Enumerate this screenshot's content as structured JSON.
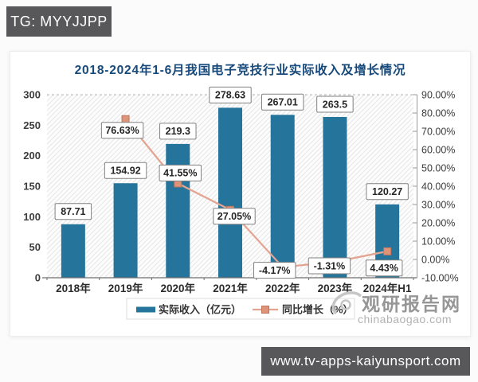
{
  "page": {
    "top_badge": "TG: MYYJJPP",
    "bottom_badge": "www.tv-apps-kaiyunsport.com"
  },
  "watermark": {
    "name": "观研报告网",
    "domain": "chinabaogao.com"
  },
  "chart_data": {
    "type": "bar+line combo",
    "title": "2018-2024年1-6月我国电子竞技行业实际收入及增长情况",
    "categories": [
      "2018年",
      "2019年",
      "2020年",
      "2021年",
      "2022年",
      "2023年",
      "2024年H1"
    ],
    "series": [
      {
        "name": "实际收入（亿元）",
        "type": "bar",
        "axis": "left",
        "color": "#25749b",
        "values": [
          87.71,
          154.92,
          219.3,
          278.63,
          267.01,
          263.5,
          120.27
        ],
        "labels": [
          "87.71",
          "154.92",
          "219.3",
          "278.63",
          "267.01",
          "263.5",
          "120.27"
        ]
      },
      {
        "name": "同比增长（%）",
        "type": "line",
        "axis": "right",
        "color": "#e3a492",
        "marker_fill": "#dd9478",
        "marker_stroke": "#c0755a",
        "start_index": 1,
        "values": [
          76.63,
          41.55,
          27.05,
          -4.17,
          -1.31,
          4.43
        ],
        "labels": [
          "76.63%",
          "41.55%",
          "27.05%",
          "-4.17%",
          "-1.31%",
          "4.43%"
        ]
      }
    ],
    "left_axis": {
      "min": 0,
      "max": 300,
      "ticks": [
        "0",
        "50",
        "100",
        "150",
        "200",
        "250",
        "300"
      ]
    },
    "right_axis": {
      "min": -10,
      "max": 90,
      "ticks": [
        "90.00%",
        "80.00%",
        "70.00%",
        "60.00%",
        "50.00%",
        "40.00%",
        "30.00%",
        "20.00%",
        "10.00%",
        "0.00%",
        "-10.00%"
      ]
    },
    "legend_position": "bottom",
    "grid": "top dashed gridline only; hatched plot background"
  }
}
